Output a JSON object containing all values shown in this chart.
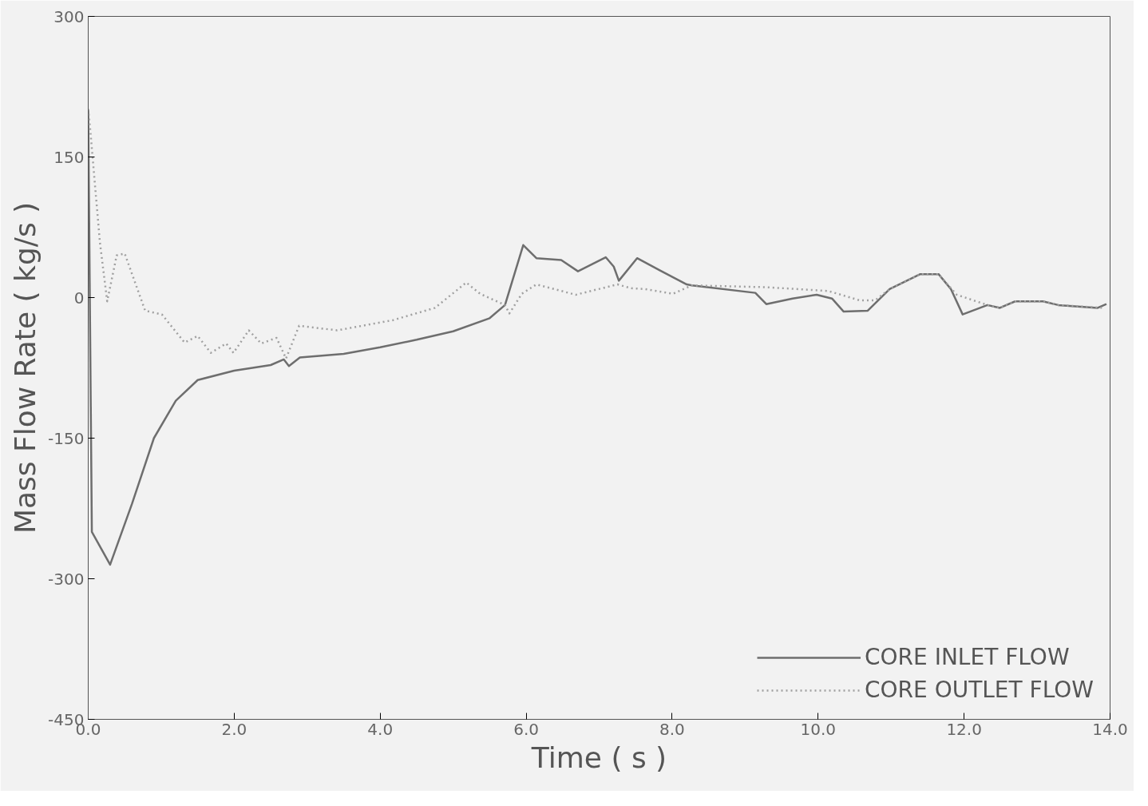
{
  "chart_data": {
    "type": "line",
    "xlabel": "Time ( s )",
    "ylabel": "Mass Flow Rate ( kg/s )",
    "xlim": [
      0,
      14
    ],
    "ylim": [
      -450,
      300
    ],
    "xticks": [
      {
        "value": 0,
        "label": "0.0"
      },
      {
        "value": 2,
        "label": "2.0"
      },
      {
        "value": 4,
        "label": "4.0"
      },
      {
        "value": 6,
        "label": "6.0"
      },
      {
        "value": 8,
        "label": "8.0"
      },
      {
        "value": 10,
        "label": "10.0"
      },
      {
        "value": 12,
        "label": "12.0"
      },
      {
        "value": 14,
        "label": "14.0"
      }
    ],
    "yticks": [
      -450,
      -300,
      -150,
      0,
      150,
      300
    ],
    "grid": false,
    "legend": "bottom right",
    "marker": "none",
    "series": [
      {
        "name": "CORE INLET FLOW",
        "color": "#6e6e6e",
        "line_style": "solid",
        "x": [
          0,
          0.05,
          0.3,
          0.6,
          0.9,
          1.2,
          1.5,
          2.0,
          2.5,
          2.68,
          2.75,
          2.9,
          3.5,
          4.0,
          4.5,
          5.0,
          5.5,
          5.71,
          5.96,
          6.14,
          6.48,
          6.71,
          7.09,
          7.2,
          7.27,
          7.52,
          7.83,
          8.2,
          8.27,
          9.14,
          9.29,
          9.65,
          9.98,
          10.19,
          10.35,
          10.68,
          10.98,
          11.4,
          11.65,
          11.82,
          11.98,
          12.32,
          12.49,
          12.7,
          13.08,
          13.29,
          13.83,
          13.95
        ],
        "values": [
          200,
          -250,
          -285,
          -220,
          -150,
          -110,
          -88,
          -78,
          -72,
          -66,
          -73,
          -64,
          -60,
          -53,
          -45,
          -36,
          -22,
          -8,
          56,
          42,
          40,
          28,
          43,
          33,
          18,
          42,
          29,
          14,
          13,
          5,
          -7,
          -1,
          3,
          -1,
          -15,
          -14,
          9,
          25,
          25,
          9,
          -18,
          -8,
          -11,
          -4,
          -4,
          -8,
          -11,
          -7
        ]
      },
      {
        "name": "CORE OUTLET FLOW",
        "color": "#a0a0a0",
        "line_style": "dotted",
        "x": [
          0,
          0.03,
          0.16,
          0.26,
          0.39,
          0.5,
          0.78,
          1.01,
          1.32,
          1.5,
          1.68,
          1.89,
          1.99,
          2.2,
          2.37,
          2.58,
          2.71,
          2.89,
          3.41,
          4.18,
          4.75,
          5.18,
          5.37,
          5.71,
          5.77,
          5.94,
          6.14,
          6.68,
          7.25,
          7.44,
          7.63,
          8.01,
          8.27,
          9.3,
          10.14,
          10.57,
          10.78,
          10.98,
          11.4,
          11.65,
          11.9,
          12.32,
          12.49,
          12.7,
          13.08,
          13.29,
          13.91
        ],
        "values": [
          201,
          177,
          59,
          -4,
          45,
          47,
          -14,
          -18,
          -48,
          -41,
          -59,
          -49,
          -59,
          -35,
          -49,
          -43,
          -65,
          -30,
          -35,
          -24,
          -11,
          16,
          4,
          -8,
          -17,
          4,
          14,
          3,
          14,
          10,
          9,
          4,
          13,
          11,
          7,
          -3,
          -3,
          9,
          25,
          25,
          3,
          -8,
          -11,
          -4,
          -4,
          -8,
          -11
        ]
      }
    ]
  }
}
